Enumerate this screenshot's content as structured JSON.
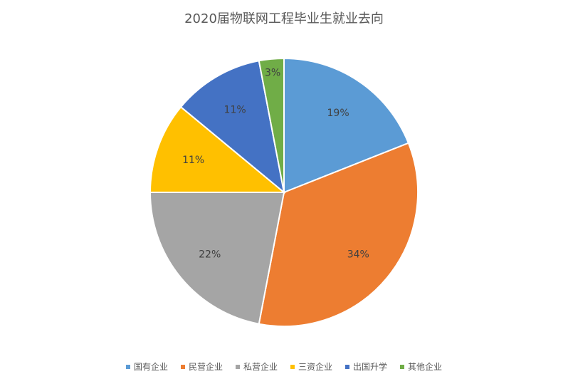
{
  "chart_data": {
    "type": "pie",
    "title": "2020届物联网工程毕业生就业去向",
    "slices": [
      {
        "label": "国有企业",
        "value": 19,
        "display": "19%",
        "color": "#5B9BD5"
      },
      {
        "label": "民营企业",
        "value": 34,
        "display": "34%",
        "color": "#ED7D31"
      },
      {
        "label": "私营企业",
        "value": 22,
        "display": "22%",
        "color": "#A5A5A5"
      },
      {
        "label": "三资企业",
        "value": 11,
        "display": "11%",
        "color": "#FFC000"
      },
      {
        "label": "出国升学",
        "value": 11,
        "display": "11%",
        "color": "#4472C4"
      },
      {
        "label": "其他企业",
        "value": 3,
        "display": "3%",
        "color": "#70AD47"
      }
    ],
    "legend_position": "bottom"
  }
}
